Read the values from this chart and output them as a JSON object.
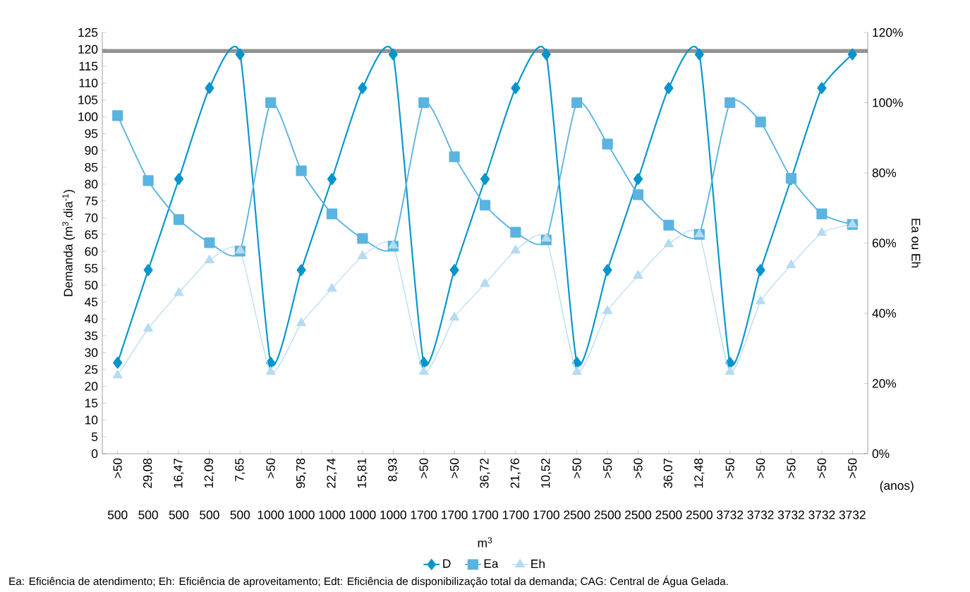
{
  "chart_data": {
    "type": "line",
    "categories": [
      ">50",
      "29,08",
      "16,47",
      "12,09",
      "7,65",
      ">50",
      "95,78",
      "22,74",
      "15,81",
      "8,93",
      ">50",
      ">50",
      "36,72",
      "21,76",
      "10,52",
      ">50",
      ">50",
      ">50",
      "36,07",
      "12,48",
      ">50",
      ">50",
      ">50",
      ">50",
      ">50"
    ],
    "ylabel": "Demanda (m$^{3}$.dia$^{-1}$)",
    "y2label": "Ea ou Eh",
    "ylim": [
      0,
      125
    ],
    "yticks": [
      0,
      5,
      10,
      15,
      20,
      25,
      30,
      35,
      40,
      45,
      50,
      55,
      60,
      65,
      70,
      75,
      80,
      85,
      90,
      95,
      100,
      105,
      110,
      115,
      120,
      125
    ],
    "y2lim": [
      0,
      120
    ],
    "y2ticks": [
      {
        "value": 0,
        "label": "0%"
      },
      {
        "value": 20,
        "label": "20%"
      },
      {
        "value": 40,
        "label": "40%"
      },
      {
        "value": 60,
        "label": "60%"
      },
      {
        "value": 80,
        "label": "80%"
      },
      {
        "value": 100,
        "label": "100%"
      },
      {
        "value": 120,
        "label": "120%"
      }
    ],
    "series": [
      {
        "name": "D",
        "color": "#0595cc",
        "marker": "diamond",
        "values": [
          27,
          54.5,
          81.5,
          108.5,
          118.5,
          27,
          54.5,
          81.5,
          108.5,
          118.5,
          27,
          54.5,
          81.5,
          108.5,
          118.5,
          27,
          54.5,
          81.5,
          108.5,
          118.5,
          27,
          54.5,
          81.5,
          108.5,
          118.5
        ]
      },
      {
        "name": "Ea",
        "color": "#5ab3e0",
        "marker": "square",
        "axis": "y2",
        "values": [
          96.3,
          77.8,
          66.7,
          60.1,
          57.7,
          100,
          80.6,
          68.3,
          61.3,
          59.1,
          100,
          84.6,
          70.8,
          63.1,
          60.9,
          100,
          88.2,
          73.8,
          65.1,
          62.5,
          100,
          94.5,
          78.4,
          68.3,
          65.3
        ]
      },
      {
        "name": "Eh",
        "color": "#b4dbf1",
        "marker": "triangle",
        "axis": "y2",
        "values": [
          22.3,
          35.6,
          45.8,
          55.1,
          57.9,
          23.3,
          37.2,
          47,
          56.3,
          59.3,
          23.3,
          38.8,
          48.4,
          57.9,
          61.3,
          23.3,
          40.6,
          50.7,
          59.7,
          62.5,
          23.3,
          43.4,
          53.7,
          62.9,
          65.3
        ]
      }
    ],
    "ref_lines": [
      {
        "axis": "y",
        "value": 119.5,
        "color": "#939393"
      }
    ],
    "legend": "bottom",
    "annotations": [
      "500",
      "500",
      "500",
      "500",
      "500",
      "1000",
      "1000",
      "1000",
      "1000",
      "1000",
      "1700",
      "1700",
      "1700",
      "1700",
      "1700",
      "2500",
      "2500",
      "2500",
      "2500",
      "2500",
      "3732",
      "3732",
      "3732",
      "3732",
      "3732",
      "(anos)",
      "m$^{3}$",
      "Ea: Eficiência de atendimento; Eh: Eficiência de aproveitamento; Edt: Eficiência de disponibilização total da demanda; CAG: Central de Água Gelada."
    ]
  }
}
